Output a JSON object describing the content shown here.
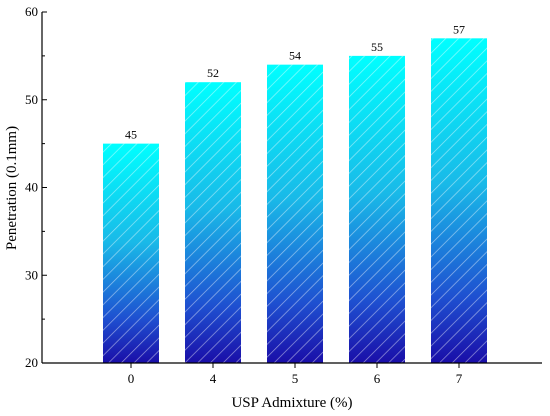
{
  "chart_data": {
    "type": "bar",
    "title": "",
    "xlabel": "USP Admixture (%)",
    "ylabel": "Penetration (0.1mm)",
    "categories": [
      "0",
      "4",
      "5",
      "6",
      "7"
    ],
    "values": [
      45,
      52,
      54,
      55,
      57
    ],
    "data_labels": [
      "45",
      "52",
      "54",
      "55",
      "57"
    ],
    "ylim": [
      20,
      60
    ],
    "yticks": [
      20,
      30,
      40,
      50,
      60
    ],
    "ytick_labels": [
      "20",
      "30",
      "40",
      "50",
      "60"
    ],
    "grid": false,
    "legend": false,
    "bar_style": "vertical gradient cyan (top) to dark blue (bottom) with white diagonal hatching",
    "colors": {
      "bar_top": "#00ffff",
      "bar_bottom": "#1a0ea8",
      "hatch": "#ffffff",
      "axis": "#000000"
    }
  }
}
